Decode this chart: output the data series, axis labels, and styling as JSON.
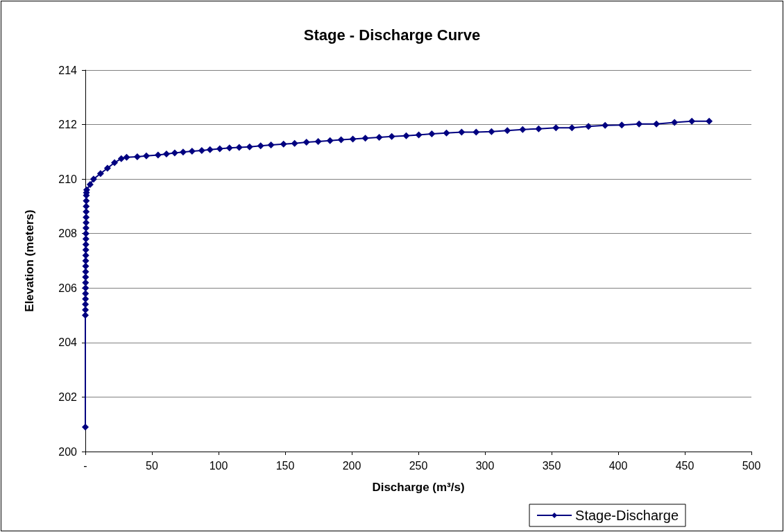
{
  "chart_data": {
    "type": "line",
    "title": "Stage - Discharge Curve",
    "xlabel": "Discharge (m³/s)",
    "ylabel": "Elevation (meters)",
    "xlim": [
      0,
      500
    ],
    "xticks": [
      {
        "value": 0,
        "label": "-"
      },
      50,
      100,
      150,
      200,
      250,
      300,
      350,
      400,
      450,
      500
    ],
    "ylim": [
      200,
      214
    ],
    "yticks": [
      200,
      202,
      204,
      206,
      208,
      210,
      212,
      214
    ],
    "grid": "y",
    "legend": "bottom right",
    "marker": "diamond",
    "line_style": "solid",
    "series": [
      {
        "name": "Stage-Discharge",
        "color": "#000080",
        "x": [
          0,
          0,
          0.05,
          0.08,
          0.1,
          0.12,
          0.15,
          0.18,
          0.2,
          0.23,
          0.26,
          0.3,
          0.33,
          0.36,
          0.4,
          0.43,
          0.47,
          0.5,
          0.54,
          0.58,
          0.62,
          0.66,
          0.7,
          0.75,
          0.8,
          1,
          3.6,
          6.2,
          11.4,
          16.6,
          21.9,
          27,
          31,
          39,
          45.8,
          54.6,
          60.9,
          67.1,
          73.4,
          80.1,
          87.4,
          93.6,
          100.9,
          108.2,
          115.5,
          123.3,
          131.6,
          139.4,
          148.8,
          157.1,
          166,
          174.8,
          183.7,
          192,
          200.8,
          210.2,
          220.6,
          230,
          240.9,
          250.3,
          260.1,
          271.1,
          282.5,
          293.4,
          304.9,
          316.8,
          328.3,
          340.3,
          353.3,
          365.3,
          377.7,
          390.2,
          402.7,
          415.7,
          428.7,
          442.3,
          455.3,
          468.3
        ],
        "values": [
          200.9,
          205,
          205.2,
          205.4,
          205.6,
          205.8,
          206,
          206.2,
          206.4,
          206.6,
          206.8,
          207,
          207.2,
          207.4,
          207.6,
          207.8,
          208,
          208.2,
          208.4,
          208.6,
          208.8,
          209,
          209.2,
          209.4,
          209.5,
          209.6,
          209.8,
          210,
          210.2,
          210.4,
          210.6,
          210.75,
          210.8,
          210.82,
          210.85,
          210.88,
          210.92,
          210.96,
          210.99,
          211.02,
          211.05,
          211.08,
          211.11,
          211.14,
          211.16,
          211.18,
          211.22,
          211.25,
          211.28,
          211.31,
          211.35,
          211.38,
          211.41,
          211.44,
          211.47,
          211.5,
          211.53,
          211.56,
          211.59,
          211.62,
          211.66,
          211.69,
          211.72,
          211.72,
          211.74,
          211.78,
          211.82,
          211.84,
          211.88,
          211.88,
          211.93,
          211.97,
          211.98,
          212.02,
          212.02,
          212.08,
          212.12,
          212.12
        ]
      }
    ]
  }
}
